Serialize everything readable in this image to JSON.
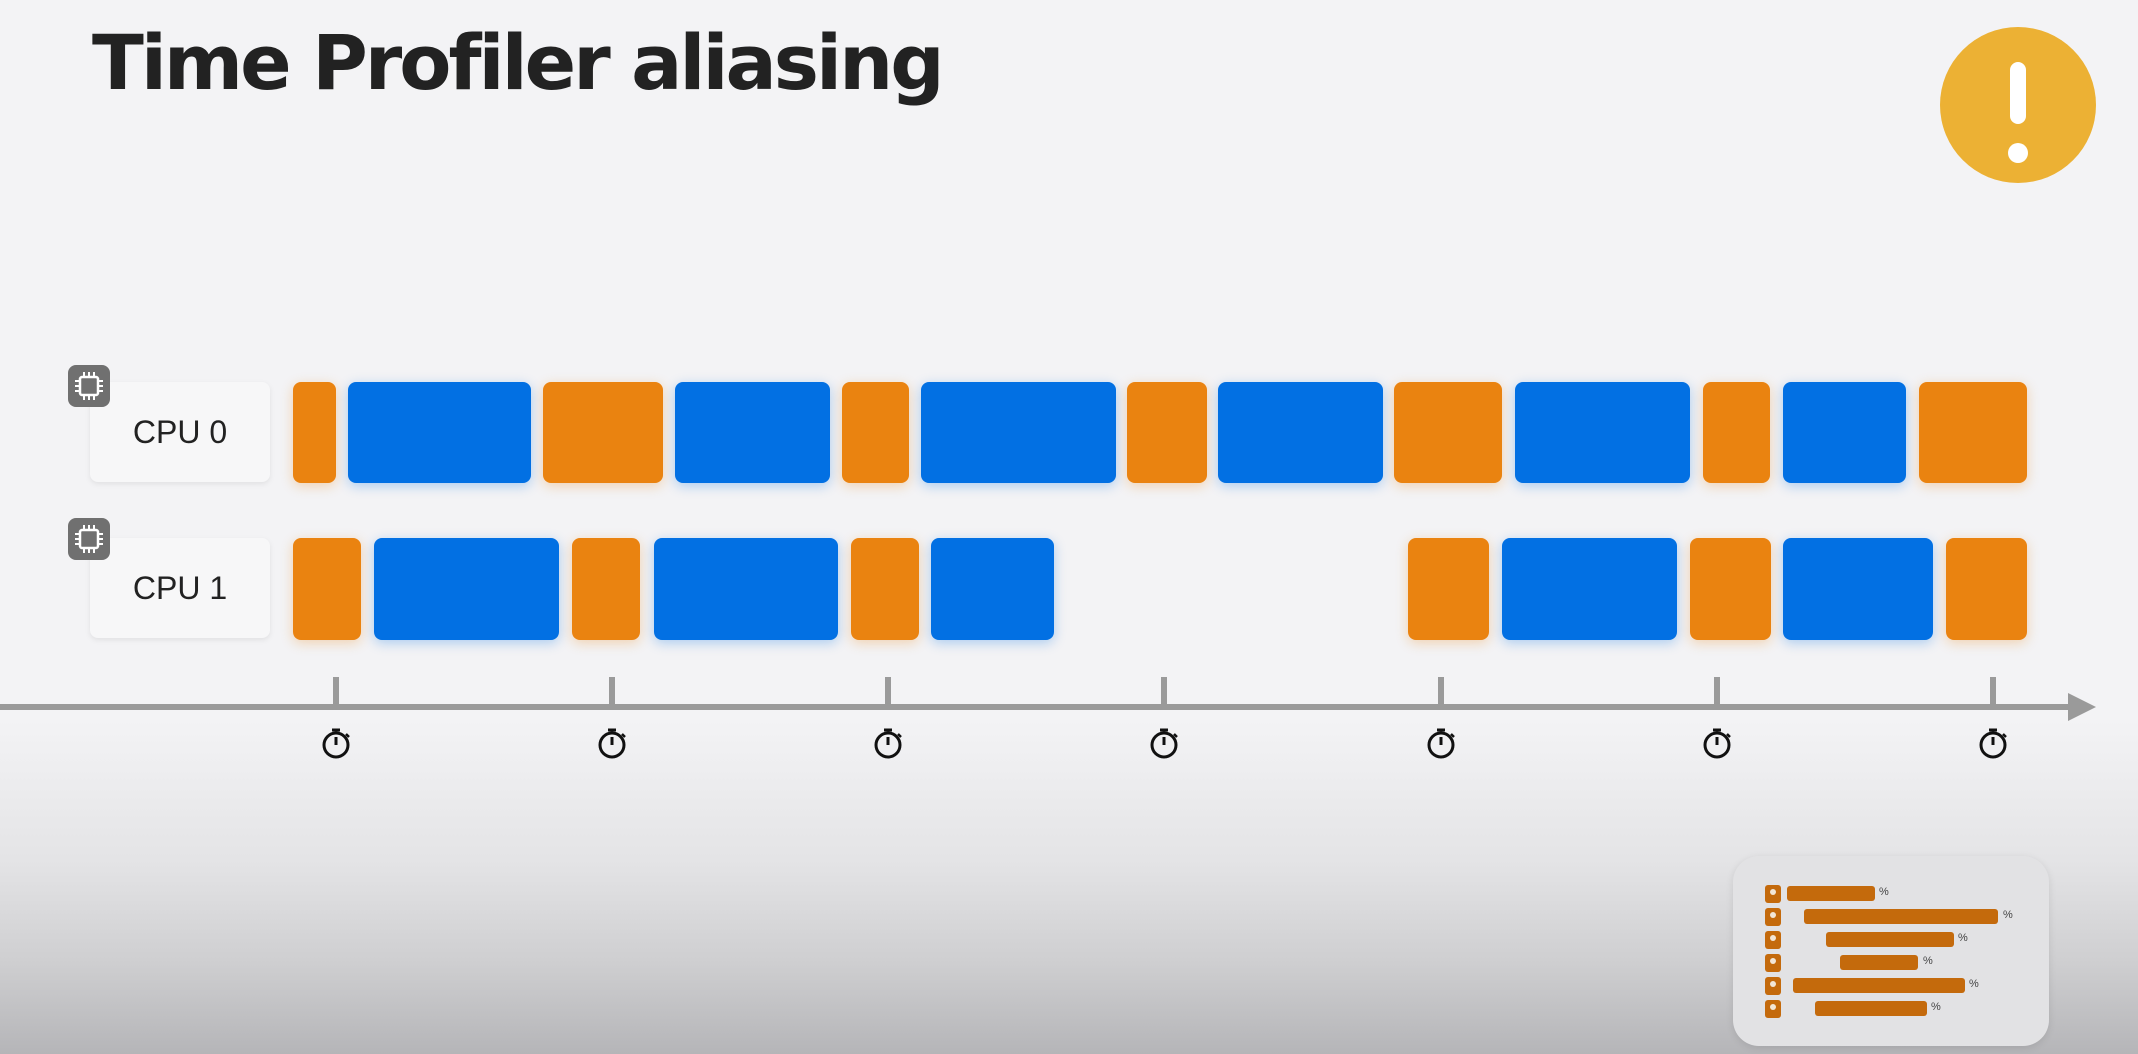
{
  "slide": {
    "title": "Time Profiler aliasing"
  },
  "colors": {
    "background": "#f3f3f5",
    "orange": "#ea8310",
    "blue": "#0270e3",
    "alert": "#ecb134",
    "axis": "#9a9a9a"
  },
  "cpus": [
    {
      "label": "CPU 0"
    },
    {
      "label": "CPU 1"
    }
  ],
  "thumbnail": {
    "rows": [
      {
        "percent_label": "%"
      },
      {
        "percent_label": "%"
      },
      {
        "percent_label": "%"
      },
      {
        "percent_label": "%"
      },
      {
        "percent_label": "%"
      },
      {
        "percent_label": "%"
      }
    ]
  }
}
